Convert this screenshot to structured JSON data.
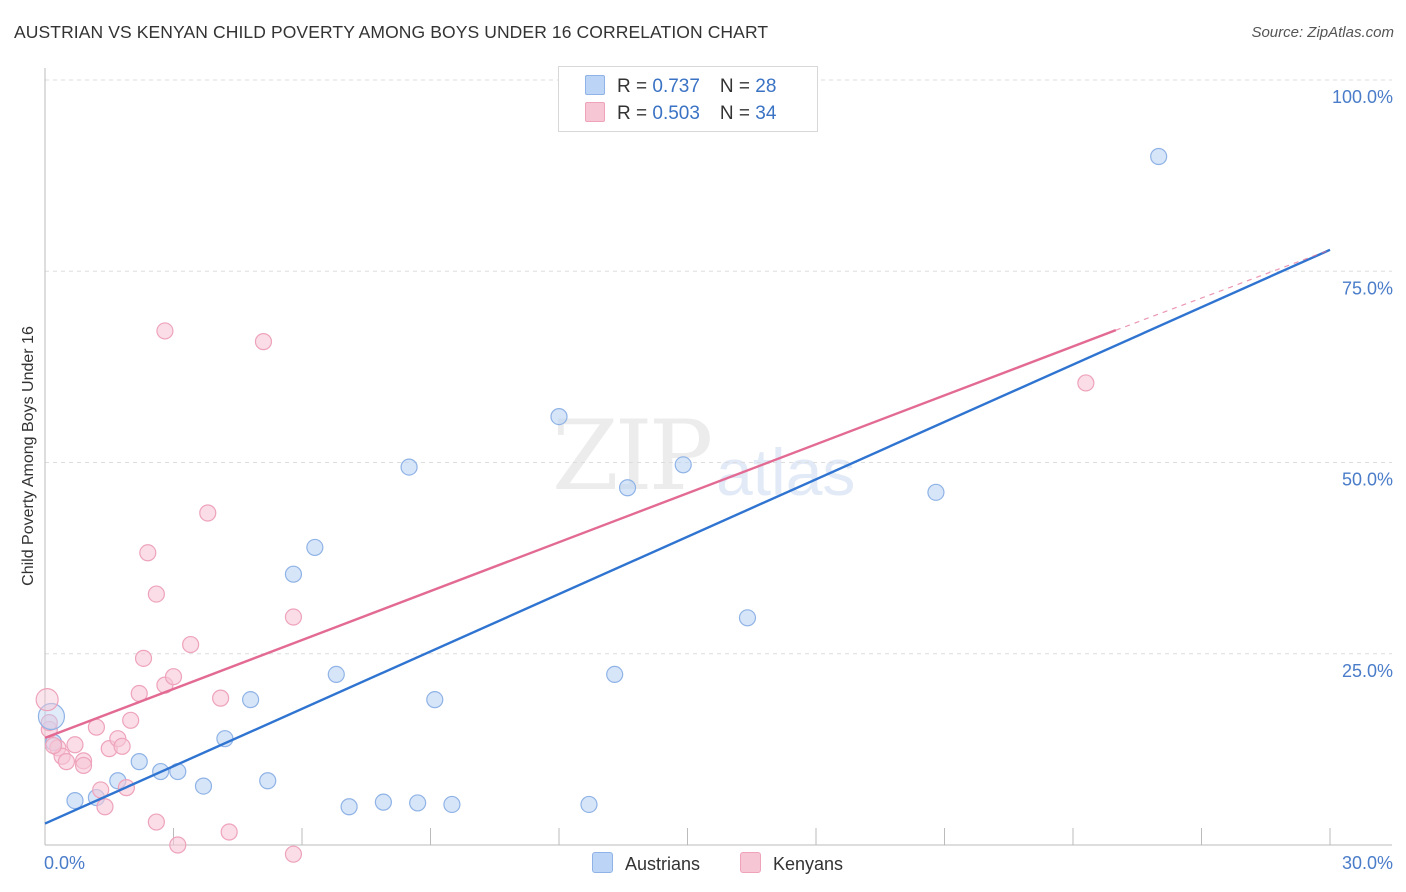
{
  "header": {
    "title": "AUSTRIAN VS KENYAN CHILD POVERTY AMONG BOYS UNDER 16 CORRELATION CHART",
    "source": "Source: ZipAtlas.com"
  },
  "legend": {
    "austrians": {
      "r_label": "R = ",
      "r_value": "0.737",
      "n_label": "N = ",
      "n_value": "28"
    },
    "kenyans": {
      "r_label": "R = ",
      "r_value": "0.503",
      "n_label": "N = ",
      "n_value": "34"
    }
  },
  "bottom_legend": {
    "austrians": "Austrians",
    "kenyans": "Kenyans"
  },
  "watermark": {
    "zip": "ZIP",
    "atlas": "atlas"
  },
  "colors": {
    "austrians_fill": "#bcd4f5",
    "austrians_stroke": "#8fb3e6",
    "austrians_line": "#2f74d0",
    "kenyans_fill": "#f7c6d5",
    "kenyans_stroke": "#eea3bb",
    "kenyans_line": "#e26a93",
    "axis_text": "#4a7cc9",
    "grid": "#dddddd"
  },
  "chart_data": {
    "type": "scatter",
    "title": "AUSTRIAN VS KENYAN CHILD POVERTY AMONG BOYS UNDER 16 CORRELATION CHART",
    "xlabel": "",
    "ylabel": "Child Poverty Among Boys Under 16",
    "xlim": [
      0,
      30
    ],
    "ylim": [
      0,
      100
    ],
    "x_tick_labels": [
      "0.0%",
      "30.0%"
    ],
    "y_ticks": [
      25,
      50,
      75,
      100
    ],
    "y_tick_labels": [
      "25.0%",
      "50.0%",
      "75.0%",
      "100.0%"
    ],
    "grid": true,
    "series": [
      {
        "name": "Austrians",
        "r": 0.737,
        "n": 28,
        "trend": {
          "x": [
            0,
            30
          ],
          "y": [
            2.8,
            77.8
          ]
        },
        "points": [
          [
            0.2,
            13.4
          ],
          [
            0.7,
            5.8
          ],
          [
            1.2,
            6.2
          ],
          [
            1.7,
            8.4
          ],
          [
            2.2,
            10.9
          ],
          [
            2.7,
            9.6
          ],
          [
            3.1,
            9.6
          ],
          [
            3.7,
            7.7
          ],
          [
            4.2,
            13.9
          ],
          [
            4.8,
            19.0
          ],
          [
            5.2,
            8.4
          ],
          [
            5.8,
            35.4
          ],
          [
            6.3,
            38.9
          ],
          [
            6.8,
            22.3
          ],
          [
            7.1,
            5.0
          ],
          [
            7.9,
            5.6
          ],
          [
            8.5,
            49.4
          ],
          [
            8.7,
            5.5
          ],
          [
            9.1,
            19.0
          ],
          [
            9.5,
            5.3
          ],
          [
            12.0,
            56.0
          ],
          [
            12.7,
            5.3
          ],
          [
            13.3,
            22.3
          ],
          [
            13.6,
            46.7
          ],
          [
            14.9,
            49.7
          ],
          [
            16.4,
            29.7
          ],
          [
            20.8,
            46.1
          ],
          [
            26.0,
            90.0
          ]
        ]
      },
      {
        "name": "Kenyans",
        "r": 0.503,
        "n": 34,
        "trend": {
          "x": [
            0,
            25
          ],
          "y": [
            14.0,
            67.3
          ]
        },
        "trend_dashed": {
          "x": [
            25,
            30
          ],
          "y": [
            67.3,
            77.8
          ]
        },
        "points": [
          [
            0.1,
            15.1
          ],
          [
            0.3,
            12.7
          ],
          [
            0.4,
            11.6
          ],
          [
            0.5,
            10.9
          ],
          [
            0.7,
            13.1
          ],
          [
            0.9,
            11.0
          ],
          [
            0.9,
            10.4
          ],
          [
            1.2,
            15.4
          ],
          [
            1.3,
            7.2
          ],
          [
            1.4,
            5.0
          ],
          [
            1.5,
            12.6
          ],
          [
            1.7,
            13.9
          ],
          [
            1.8,
            12.9
          ],
          [
            1.9,
            7.5
          ],
          [
            2.0,
            16.3
          ],
          [
            2.2,
            19.8
          ],
          [
            2.3,
            24.4
          ],
          [
            2.4,
            38.2
          ],
          [
            2.6,
            32.8
          ],
          [
            2.6,
            3.0
          ],
          [
            2.8,
            67.2
          ],
          [
            2.8,
            20.9
          ],
          [
            3.0,
            22.0
          ],
          [
            3.1,
            0.0
          ],
          [
            3.4,
            26.2
          ],
          [
            3.8,
            43.4
          ],
          [
            4.1,
            19.2
          ],
          [
            4.3,
            1.7
          ],
          [
            5.1,
            65.8
          ],
          [
            5.8,
            29.8
          ],
          [
            5.8,
            -1.2
          ],
          [
            24.3,
            60.4
          ],
          [
            0.1,
            16.0
          ],
          [
            0.2,
            13.0
          ]
        ]
      }
    ]
  }
}
